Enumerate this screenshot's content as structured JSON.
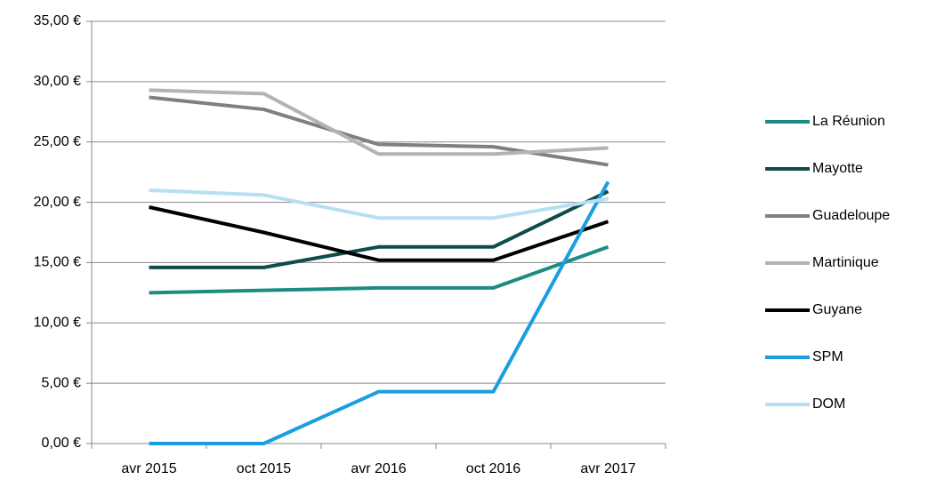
{
  "chart_data": {
    "type": "line",
    "categories": [
      "avr 2015",
      "oct 2015",
      "avr 2016",
      "oct 2016",
      "avr 2017"
    ],
    "series": [
      {
        "name": "La Réunion",
        "color": "#1a8c82",
        "values": [
          12.5,
          12.7,
          12.9,
          12.9,
          16.3
        ]
      },
      {
        "name": "Mayotte",
        "color": "#0d4c4a",
        "values": [
          14.6,
          14.6,
          16.3,
          16.3,
          20.9
        ]
      },
      {
        "name": "Guadeloupe",
        "color": "#808080",
        "values": [
          28.7,
          27.7,
          24.8,
          24.6,
          23.1
        ]
      },
      {
        "name": "Martinique",
        "color": "#b3b3b3",
        "values": [
          29.3,
          29.0,
          24.0,
          24.0,
          24.5
        ]
      },
      {
        "name": "Guyane",
        "color": "#000000",
        "values": [
          19.6,
          17.5,
          15.2,
          15.2,
          18.4
        ]
      },
      {
        "name": "SPM",
        "color": "#1a9ee0",
        "values": [
          0,
          0,
          4.3,
          4.3,
          21.7
        ]
      },
      {
        "name": "DOM",
        "color": "#b6e0f2",
        "values": [
          21.0,
          20.6,
          18.7,
          18.7,
          20.3
        ]
      }
    ],
    "ylim": [
      0,
      35
    ],
    "yticks": [
      {
        "value": 0,
        "label": "0,00 €"
      },
      {
        "value": 5,
        "label": "5,00 €"
      },
      {
        "value": 10,
        "label": "10,00 €"
      },
      {
        "value": 15,
        "label": "15,00 €"
      },
      {
        "value": 20,
        "label": "20,00 €"
      },
      {
        "value": 25,
        "label": "25,00 €"
      },
      {
        "value": 30,
        "label": "30,00 €"
      },
      {
        "value": 35,
        "label": "35,00 €"
      }
    ],
    "grid": true,
    "legend": "right"
  }
}
